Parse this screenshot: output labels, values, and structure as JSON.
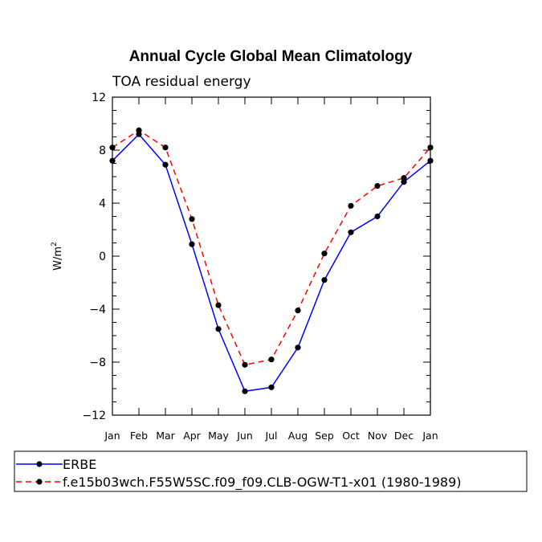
{
  "chart_data": {
    "type": "line",
    "title": "Annual Cycle Global Mean Climatology",
    "subtitle": "TOA residual energy",
    "ylabel": "W/m",
    "ylabel_sup": "2",
    "xlabel": "",
    "ylim": [
      -12,
      12
    ],
    "yticks": [
      12,
      8,
      4,
      0,
      -4,
      -8,
      -12
    ],
    "ytick_labels": [
      "12",
      "8",
      "4",
      "0",
      "−4",
      "−8",
      "−12"
    ],
    "categories": [
      "Jan",
      "Feb",
      "Mar",
      "Apr",
      "May",
      "Jun",
      "Jul",
      "Aug",
      "Sep",
      "Oct",
      "Nov",
      "Dec",
      "Jan"
    ],
    "series": [
      {
        "name": "ERBE",
        "color": "#0000ff",
        "dash": "solid",
        "values": [
          7.2,
          9.2,
          6.9,
          0.9,
          -5.5,
          -10.2,
          -9.9,
          -6.9,
          -1.8,
          1.8,
          3.0,
          5.6,
          7.2
        ]
      },
      {
        "name": "f.e15b03wch.F55W5SC.f09_f09.CLB-OGW-T1-x01 (1980-1989)",
        "color": "#ff0000",
        "dash": "dashed",
        "values": [
          8.2,
          9.5,
          8.2,
          2.8,
          -3.7,
          -8.2,
          -7.8,
          -4.1,
          0.2,
          3.8,
          5.3,
          5.9,
          8.2
        ]
      }
    ],
    "legend_position": "bottom-left",
    "marker_color": "#000000"
  }
}
